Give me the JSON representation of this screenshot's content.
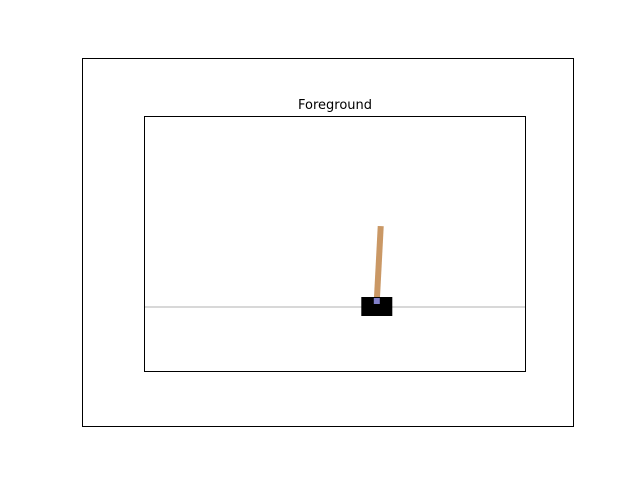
{
  "outer_panel": {},
  "inner_panel": {
    "title": "Foreground"
  },
  "scene": {
    "track_color": "#b0b0b0",
    "cart_color": "#000000",
    "pole_color": "#ca9865",
    "axle_color": "#8180ca",
    "cart_position_fraction": 0.61,
    "pole_angle_deg": 3
  }
}
